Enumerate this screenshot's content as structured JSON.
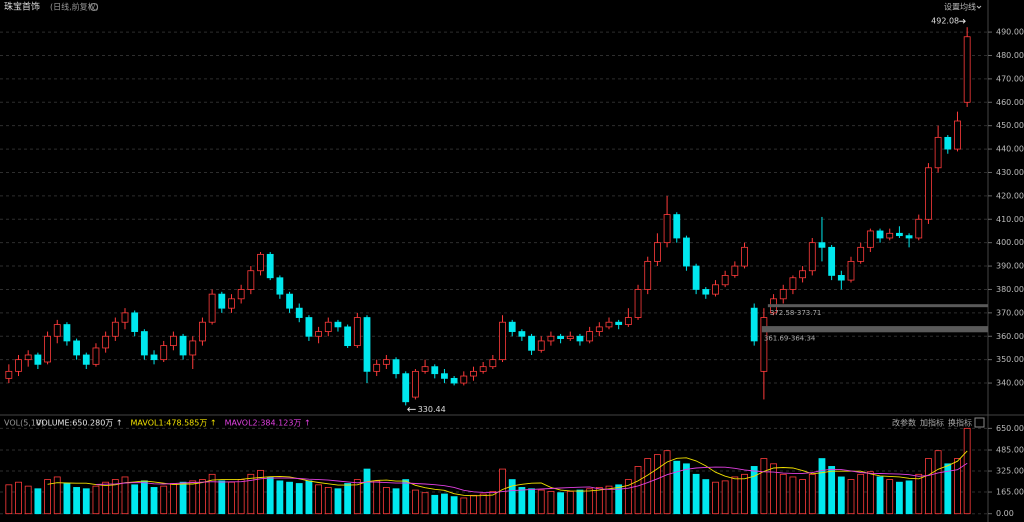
{
  "header": {
    "title": "珠宝首饰",
    "subtitle": "(日线,前复权)",
    "ma_button": "设置均线"
  },
  "chart_data": [
    {
      "type": "candlestick",
      "up_color": "#ff3b3b",
      "down_color": "#00e8ee",
      "ylim": [
        327.2,
        497.3
      ],
      "yticks": [
        {
          "value": 340,
          "label": "340.00"
        },
        {
          "value": 350,
          "label": "350.00"
        },
        {
          "value": 360,
          "label": "360.00"
        },
        {
          "value": 370,
          "label": "370.00"
        },
        {
          "value": 380,
          "label": "380.00"
        },
        {
          "value": 390,
          "label": "390.00"
        },
        {
          "value": 400,
          "label": "400.00"
        },
        {
          "value": 410,
          "label": "410.00"
        },
        {
          "value": 420,
          "label": "420.00"
        },
        {
          "value": 430,
          "label": "430.00"
        },
        {
          "value": 440,
          "label": "440.00"
        },
        {
          "value": 450,
          "label": "450.00"
        },
        {
          "value": 460,
          "label": "460.00"
        },
        {
          "value": 470,
          "label": "470.00"
        },
        {
          "value": 480,
          "label": "480.00"
        },
        {
          "value": 490,
          "label": "490.00"
        }
      ],
      "grid": true,
      "candles": [
        [
          342,
          348,
          340,
          345
        ],
        [
          345,
          352,
          343,
          350
        ],
        [
          350,
          354,
          347,
          352
        ],
        [
          352,
          353,
          346,
          348
        ],
        [
          349,
          362,
          348,
          360
        ],
        [
          360,
          367,
          357,
          365
        ],
        [
          365,
          366,
          356,
          358
        ],
        [
          358,
          359,
          350,
          352
        ],
        [
          352,
          353,
          346,
          348
        ],
        [
          348,
          357,
          347,
          355
        ],
        [
          355,
          362,
          353,
          360
        ],
        [
          360,
          368,
          358,
          366
        ],
        [
          366,
          372,
          363,
          370
        ],
        [
          370,
          371,
          360,
          362
        ],
        [
          362,
          363,
          350,
          352
        ],
        [
          352,
          354,
          348,
          350
        ],
        [
          350,
          358,
          349,
          356
        ],
        [
          356,
          362,
          354,
          360
        ],
        [
          360,
          361,
          350,
          352
        ],
        [
          352,
          360,
          346,
          358
        ],
        [
          358,
          368,
          356,
          366
        ],
        [
          366,
          380,
          365,
          378
        ],
        [
          378,
          379,
          370,
          372
        ],
        [
          372,
          378,
          370,
          376
        ],
        [
          376,
          382,
          374,
          380
        ],
        [
          380,
          390,
          378,
          388
        ],
        [
          388,
          396,
          386,
          395
        ],
        [
          395,
          396,
          384,
          385
        ],
        [
          385,
          386,
          376,
          378
        ],
        [
          378,
          379,
          370,
          372
        ],
        [
          372,
          374,
          366,
          368
        ],
        [
          368,
          369,
          358,
          360
        ],
        [
          360,
          364,
          357,
          362
        ],
        [
          362,
          368,
          360,
          366
        ],
        [
          366,
          367,
          362,
          364
        ],
        [
          364,
          365,
          355,
          356
        ],
        [
          356,
          370,
          355,
          368
        ],
        [
          368,
          369,
          340,
          345
        ],
        [
          345,
          350,
          343,
          348
        ],
        [
          348,
          352,
          346,
          350
        ],
        [
          350,
          351,
          342,
          344
        ],
        [
          344,
          345,
          330.44,
          332
        ],
        [
          334,
          346,
          333,
          345
        ],
        [
          345,
          350,
          344,
          347
        ],
        [
          347,
          348,
          342,
          344
        ],
        [
          344,
          346,
          340,
          342
        ],
        [
          342,
          343,
          339,
          340
        ],
        [
          340,
          345,
          339,
          343
        ],
        [
          343,
          347,
          341,
          345
        ],
        [
          345,
          349,
          344,
          347
        ],
        [
          347,
          352,
          346,
          350
        ],
        [
          350,
          369,
          349,
          366
        ],
        [
          366,
          367,
          360,
          362
        ],
        [
          362,
          363,
          358,
          360
        ],
        [
          360,
          361,
          352,
          354
        ],
        [
          354,
          360,
          353,
          358
        ],
        [
          358,
          362,
          356,
          360
        ],
        [
          360,
          361,
          357,
          359
        ],
        [
          359,
          362,
          358,
          360
        ],
        [
          360,
          361,
          356,
          358
        ],
        [
          358,
          364,
          357,
          362
        ],
        [
          362,
          366,
          360,
          364
        ],
        [
          364,
          368,
          363,
          366
        ],
        [
          366,
          367,
          363,
          365
        ],
        [
          365,
          372,
          364,
          368
        ],
        [
          368,
          382,
          367,
          380
        ],
        [
          380,
          394,
          378,
          392
        ],
        [
          392,
          404,
          390,
          400
        ],
        [
          400,
          420,
          398,
          412
        ],
        [
          412,
          413,
          400,
          402
        ],
        [
          402,
          403,
          388,
          390
        ],
        [
          390,
          391,
          378,
          380
        ],
        [
          380,
          381,
          376,
          378
        ],
        [
          378,
          384,
          377,
          382
        ],
        [
          382,
          388,
          381,
          386
        ],
        [
          386,
          392,
          385,
          390
        ],
        [
          390,
          400,
          389,
          398
        ],
        [
          372,
          374,
          356,
          358
        ],
        [
          345,
          372,
          333,
          368
        ],
        [
          370,
          378,
          369,
          376
        ],
        [
          376,
          382,
          374,
          380
        ],
        [
          380,
          386,
          378,
          385
        ],
        [
          385,
          390,
          383,
          388
        ],
        [
          388,
          402,
          386,
          400
        ],
        [
          400,
          411,
          392,
          398
        ],
        [
          398,
          399,
          384,
          386
        ],
        [
          386,
          388,
          380,
          384
        ],
        [
          384,
          394,
          383,
          392
        ],
        [
          392,
          400,
          391,
          398
        ],
        [
          398,
          406,
          396,
          405
        ],
        [
          405,
          406,
          400,
          402
        ],
        [
          402,
          406,
          401,
          404
        ],
        [
          404,
          407,
          402,
          403
        ],
        [
          403,
          404,
          398,
          402
        ],
        [
          402,
          412,
          401,
          410
        ],
        [
          410,
          434,
          408,
          432
        ],
        [
          432,
          450,
          430,
          445
        ],
        [
          445,
          446,
          438,
          440
        ],
        [
          440,
          456,
          439,
          452
        ],
        [
          460,
          492.08,
          458,
          488
        ]
      ],
      "max_label": "492.08",
      "min_label": "330.44",
      "zones": [
        {
          "label": "372.58-373.71",
          "low": 372.58,
          "high": 373.71
        },
        {
          "label": "361.69-364.34",
          "low": 361.69,
          "high": 364.34
        }
      ]
    },
    {
      "type": "bar",
      "indicator": "VOL(5,10)",
      "legend": [
        {
          "text": "VOLUME:650.280万 ↑",
          "color": "#e8e8e8"
        },
        {
          "text": "MAVOL1:478.585万 ↑",
          "color": "#f0e000"
        },
        {
          "text": "MAVOL2:384.123万 ↑",
          "color": "#e040e0"
        }
      ],
      "buttons": [
        "改参数",
        "加指标",
        "换指标"
      ],
      "ylim": [
        -48,
        729
      ],
      "yticks": [
        {
          "value": 0,
          "label": "0.00"
        },
        {
          "value": 165,
          "label": "165.00"
        },
        {
          "value": 325,
          "label": "325.00"
        },
        {
          "value": 485,
          "label": "485.00"
        },
        {
          "value": 650,
          "label": "650.00"
        }
      ],
      "grid": true,
      "values": [
        220,
        240,
        210,
        190,
        260,
        280,
        230,
        200,
        190,
        210,
        240,
        260,
        280,
        220,
        250,
        200,
        210,
        230,
        240,
        250,
        260,
        300,
        250,
        240,
        260,
        300,
        330,
        280,
        250,
        240,
        230,
        250,
        220,
        200,
        190,
        230,
        260,
        340,
        250,
        200,
        190,
        260,
        180,
        160,
        140,
        150,
        130,
        120,
        140,
        150,
        170,
        340,
        260,
        200,
        190,
        180,
        170,
        160,
        170,
        180,
        190,
        200,
        210,
        220,
        260,
        360,
        420,
        450,
        480,
        400,
        380,
        300,
        260,
        240,
        250,
        280,
        300,
        360,
        420,
        380,
        300,
        280,
        260,
        300,
        420,
        360,
        280,
        260,
        300,
        320,
        280,
        260,
        240,
        250,
        300,
        420,
        480,
        380,
        420,
        650.28
      ],
      "series": [
        {
          "color": "#f0e000",
          "values": [
            null,
            null,
            null,
            null,
            224,
            236,
            234,
            232,
            232,
            222,
            214,
            220,
            236,
            242,
            250,
            242,
            232,
            222,
            226,
            226,
            238,
            256,
            260,
            260,
            262,
            270,
            276,
            282,
            284,
            280,
            266,
            250,
            238,
            228,
            218,
            218,
            220,
            244,
            254,
            256,
            248,
            248,
            216,
            198,
            186,
            178,
            152,
            140,
            136,
            138,
            142,
            184,
            212,
            224,
            232,
            234,
            200,
            180,
            174,
            172,
            174,
            180,
            190,
            200,
            216,
            250,
            294,
            342,
            394,
            422,
            426,
            402,
            364,
            316,
            286,
            266,
            266,
            286,
            322,
            348,
            352,
            348,
            328,
            304,
            312,
            324,
            324,
            324,
            324,
            304,
            288,
            284,
            280,
            270,
            266,
            294,
            338,
            366,
            400,
            478.585
          ]
        },
        {
          "color": "#e040e0",
          "values": [
            null,
            null,
            null,
            null,
            null,
            null,
            null,
            null,
            null,
            223,
            225,
            227,
            234,
            237,
            236,
            228,
            226,
            229,
            234,
            238,
            240,
            244,
            241,
            243,
            244,
            254,
            266,
            271,
            272,
            271,
            268,
            263,
            260,
            256,
            249,
            242,
            235,
            241,
            241,
            237,
            233,
            234,
            230,
            226,
            221,
            213,
            200,
            178,
            167,
            162,
            160,
            168,
            176,
            180,
            185,
            188,
            192,
            196,
            199,
            202,
            204,
            190,
            185,
            187,
            194,
            212,
            237,
            266,
            297,
            319,
            338,
            348,
            353,
            355,
            354,
            346,
            334,
            325,
            319,
            317,
            309,
            307,
            307,
            313,
            330,
            338,
            336,
            326,
            314,
            308,
            306,
            304,
            302,
            297,
            285,
            291,
            311,
            323,
            335,
            384.123
          ]
        }
      ]
    }
  ]
}
